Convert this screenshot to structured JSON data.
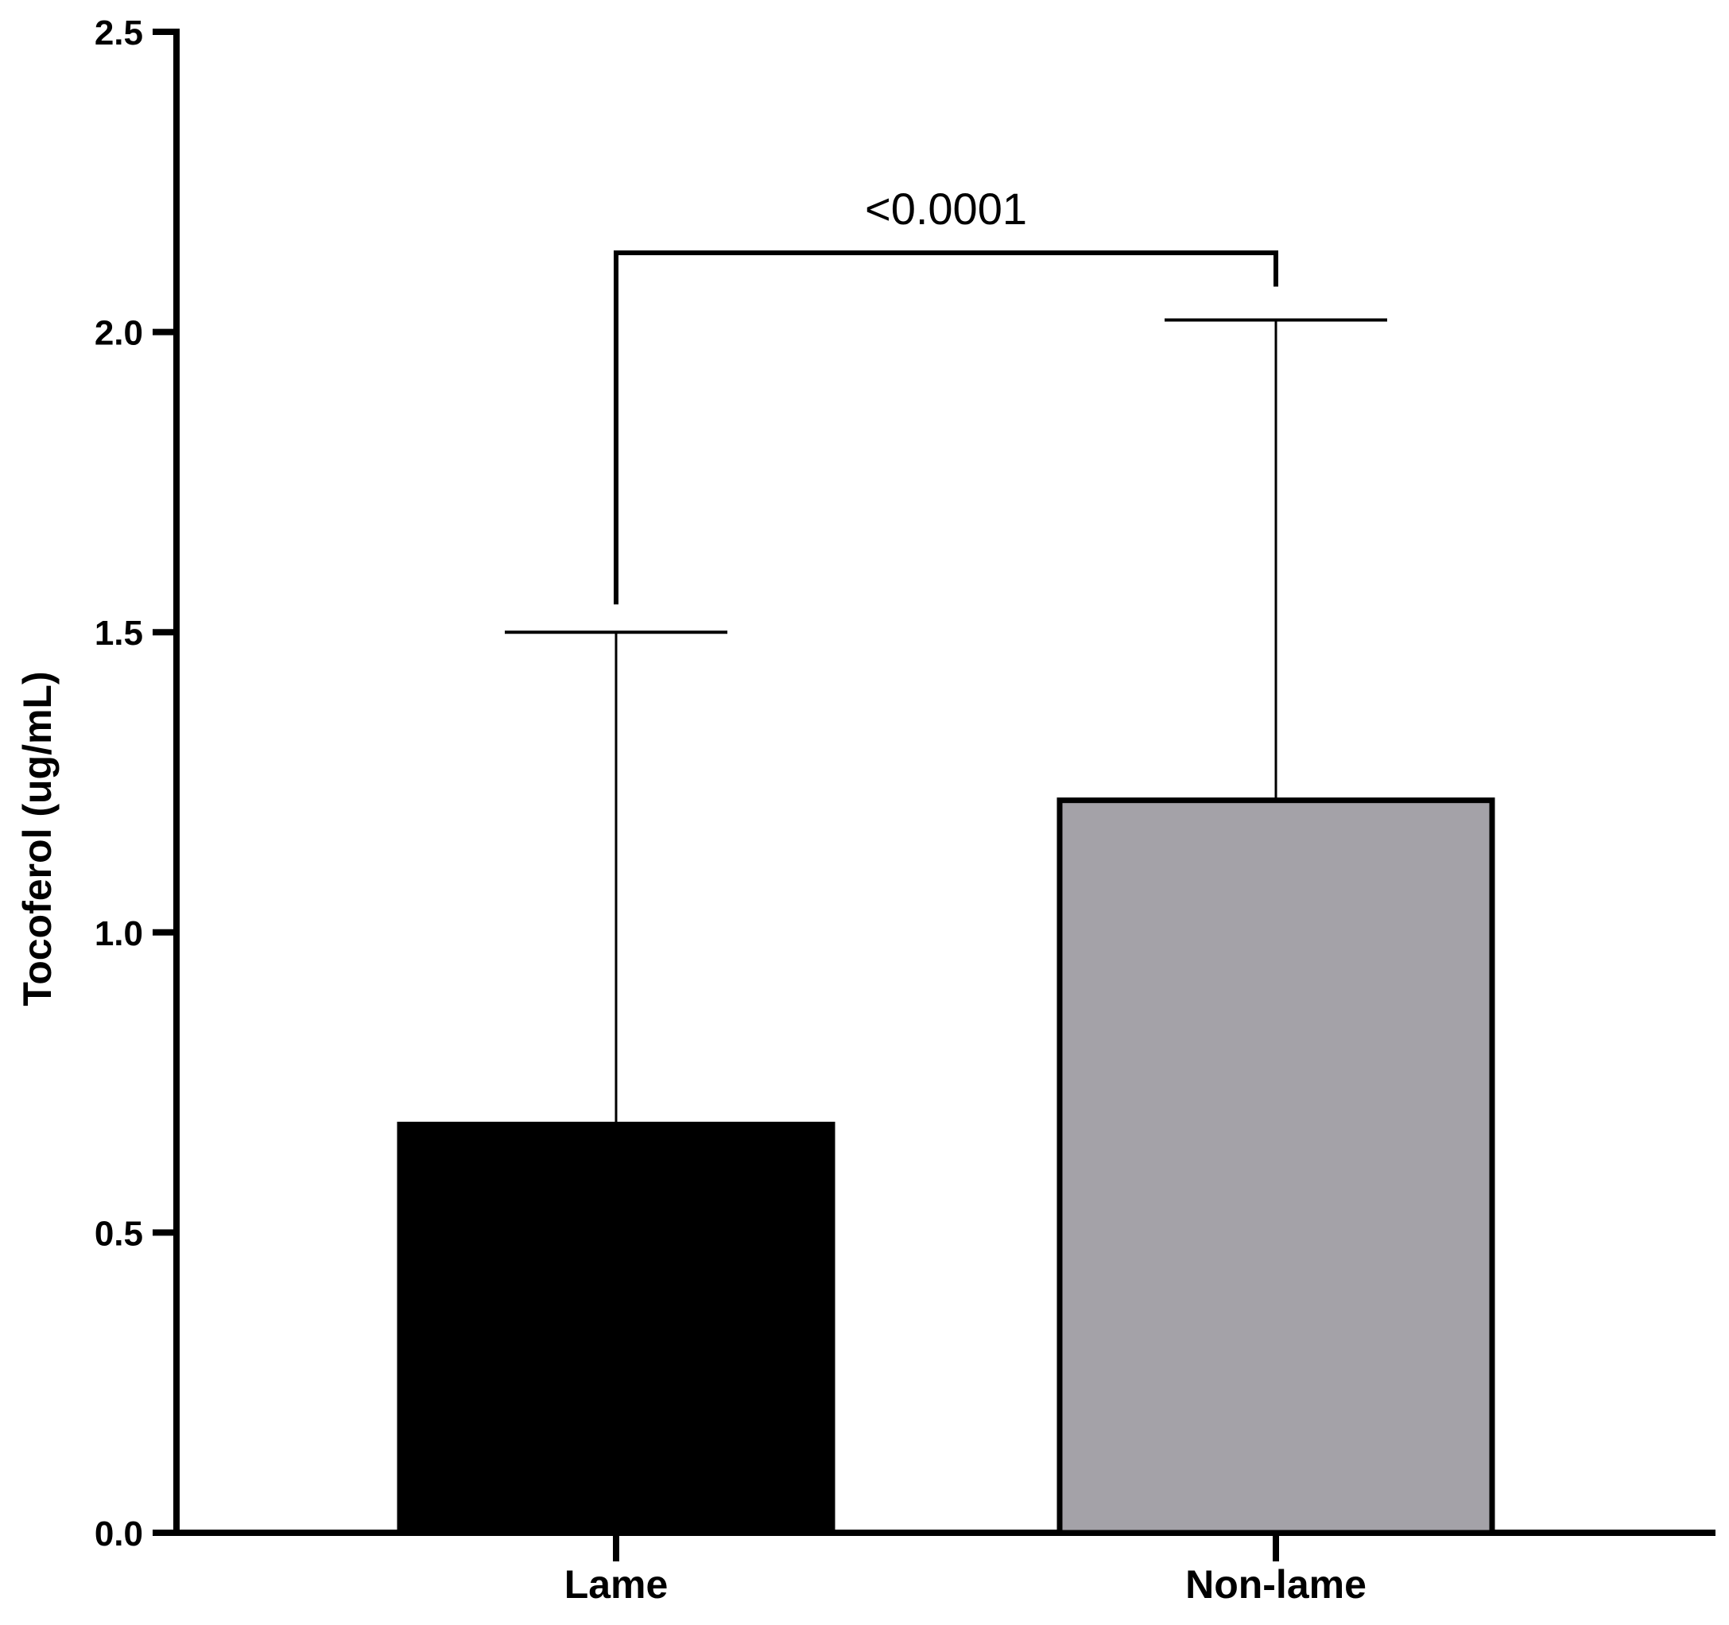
{
  "chart_data": {
    "type": "bar",
    "ylabel": "Tocoferol (ug/mL)",
    "ylim": [
      0,
      2.5
    ],
    "yticks": [
      "0.0",
      "0.5",
      "1.0",
      "1.5",
      "2.0",
      "2.5"
    ],
    "categories": [
      "Lame",
      "Non-lame"
    ],
    "values": [
      0.68,
      1.22
    ],
    "error_upper": [
      1.5,
      2.02
    ],
    "bar_colors": [
      "#000000",
      "#a4a2a8"
    ],
    "significance": {
      "label": "<0.0001",
      "between": [
        "Lame",
        "Non-lame"
      ]
    },
    "grid": false,
    "legend": "none"
  }
}
